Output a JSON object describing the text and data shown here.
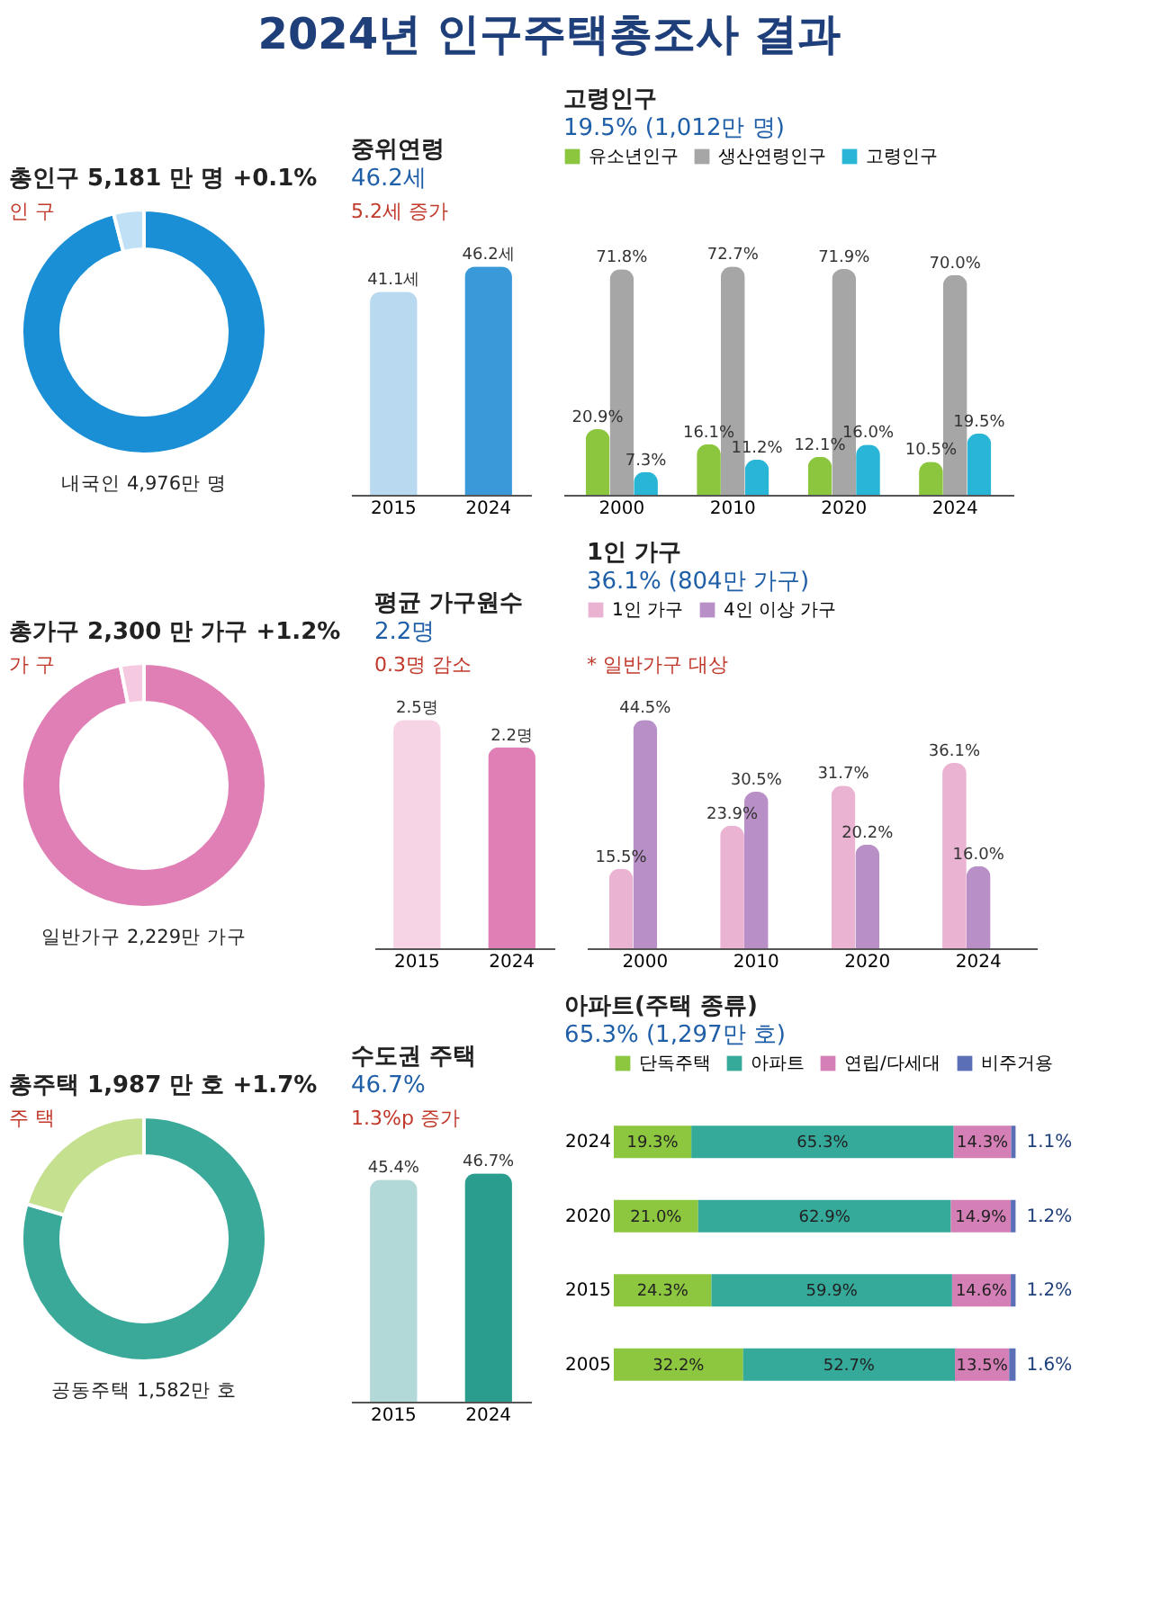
{
  "chart_data": [
    {
      "type": "other",
      "title": "2024년 인구주택총조사 결과"
    },
    {
      "type": "donut",
      "title": "총인구 5,181 만 명 +0.1%",
      "annotations": [
        "인 구"
      ],
      "categories": [
        "내국인 4,976만 명",
        null
      ],
      "values": [
        96.0,
        4.0
      ],
      "colors": [
        "#1b8fd6",
        "#bfe0f5"
      ]
    },
    {
      "type": "bar",
      "title": "중위연령",
      "subtitle": "46.2세",
      "categories": [
        "2015",
        "2024"
      ],
      "values": [
        41.1,
        46.2
      ],
      "colors": [
        "#b9d9f0",
        "#3a9ad9"
      ],
      "value_labels": [
        "41.1세",
        "46.2세"
      ],
      "annotations": [
        "5.2세 증가"
      ]
    },
    {
      "type": "bar",
      "title": "고령인구",
      "subtitle": "19.5% (1,012만 명)",
      "legend": "top",
      "categories": [
        "2000",
        "2010",
        "2020",
        "2024"
      ],
      "series": [
        {
          "name": "유소년인구",
          "color": "#8cc63f",
          "values": [
            20.9,
            16.1,
            12.1,
            10.5
          ],
          "value_labels": [
            "20.9%",
            "16.1%",
            "12.1%",
            "10.5%"
          ]
        },
        {
          "name": "생산연령인구",
          "color": "#a6a6a6",
          "values": [
            71.8,
            72.7,
            71.9,
            70.0
          ],
          "value_labels": [
            "71.8%",
            "72.7%",
            "71.9%",
            "70.0%"
          ]
        },
        {
          "name": "고령인구",
          "color": "#29b6d6",
          "values": [
            7.3,
            11.2,
            16.0,
            19.5
          ],
          "value_labels": [
            "7.3%",
            "11.2%",
            "16.0%",
            "19.5%"
          ]
        }
      ]
    },
    {
      "type": "donut",
      "title": "총가구 2,300 만 가구 +1.2%",
      "annotations": [
        "가 구"
      ],
      "categories": [
        "일반가구 2,229만 가구",
        null
      ],
      "values": [
        96.9,
        3.1
      ],
      "colors": [
        "#e07fb5",
        "#f5c9df"
      ]
    },
    {
      "type": "bar",
      "title": "평균 가구원수",
      "subtitle": "2.2명",
      "categories": [
        "2015",
        "2024"
      ],
      "values": [
        2.5,
        2.2
      ],
      "colors": [
        "#f6d3e5",
        "#e07fb5"
      ],
      "value_labels": [
        "2.5명",
        "2.2명"
      ],
      "annotations": [
        "0.3명 감소"
      ]
    },
    {
      "type": "bar",
      "title": "1인 가구",
      "subtitle": "36.1% (804만 가구)",
      "legend": "top",
      "annotations": [
        "* 일반가구 대상"
      ],
      "categories": [
        "2000",
        "2010",
        "2020",
        "2024"
      ],
      "series": [
        {
          "name": "1인 가구",
          "color": "#eab3d2",
          "values": [
            15.5,
            23.9,
            31.7,
            36.1
          ],
          "value_labels": [
            "15.5%",
            "23.9%",
            "31.7%",
            "36.1%"
          ]
        },
        {
          "name": "4인 이상 가구",
          "color": "#b88fc6",
          "values": [
            44.5,
            30.5,
            20.2,
            16.0
          ],
          "value_labels": [
            "44.5%",
            "30.5%",
            "20.2%",
            "16.0%"
          ]
        }
      ]
    },
    {
      "type": "donut",
      "title": "총주택 1,987 만 호 +1.7%",
      "annotations": [
        "주 택"
      ],
      "categories": [
        "공동주택 1,582만 호",
        null
      ],
      "values": [
        79.6,
        20.4
      ],
      "colors": [
        "#3aa99a",
        "#c5e08f"
      ]
    },
    {
      "type": "bar",
      "title": "수도권 주택",
      "subtitle": "46.7%",
      "categories": [
        "2015",
        "2024"
      ],
      "values": [
        45.4,
        46.7
      ],
      "colors": [
        "#b2d8d8",
        "#2a9d8f"
      ],
      "value_labels": [
        "45.4%",
        "46.7%"
      ],
      "annotations": [
        "1.3%p 증가"
      ]
    },
    {
      "type": "bar",
      "title": "아파트(주택 종류)",
      "subtitle": "65.3% (1,297만 호)",
      "legend": "top",
      "stacked": true,
      "orientation": "horizontal",
      "categories": [
        "2024",
        "2020",
        "2015",
        "2005"
      ],
      "series": [
        {
          "name": "단독주택",
          "color": "#8dc63f",
          "values": [
            19.3,
            21.0,
            24.3,
            32.2
          ],
          "value_labels": [
            "19.3%",
            "21.0%",
            "24.3%",
            "32.2%"
          ]
        },
        {
          "name": "아파트",
          "color": "#35a99a",
          "values": [
            65.3,
            62.9,
            59.9,
            52.7
          ],
          "value_labels": [
            "65.3%",
            "62.9%",
            "59.9%",
            "52.7%"
          ]
        },
        {
          "name": "연립/다세대",
          "color": "#d47fb6",
          "values": [
            14.3,
            14.9,
            14.6,
            13.5
          ],
          "value_labels": [
            "14.3%",
            "14.9%",
            "14.6%",
            "13.5%"
          ]
        },
        {
          "name": "비주거용",
          "color": "#5a6fb5",
          "values": [
            1.1,
            1.2,
            1.2,
            1.6
          ],
          "value_labels": [
            "1.1%",
            "1.2%",
            "1.2%",
            "1.6%"
          ]
        }
      ]
    }
  ]
}
